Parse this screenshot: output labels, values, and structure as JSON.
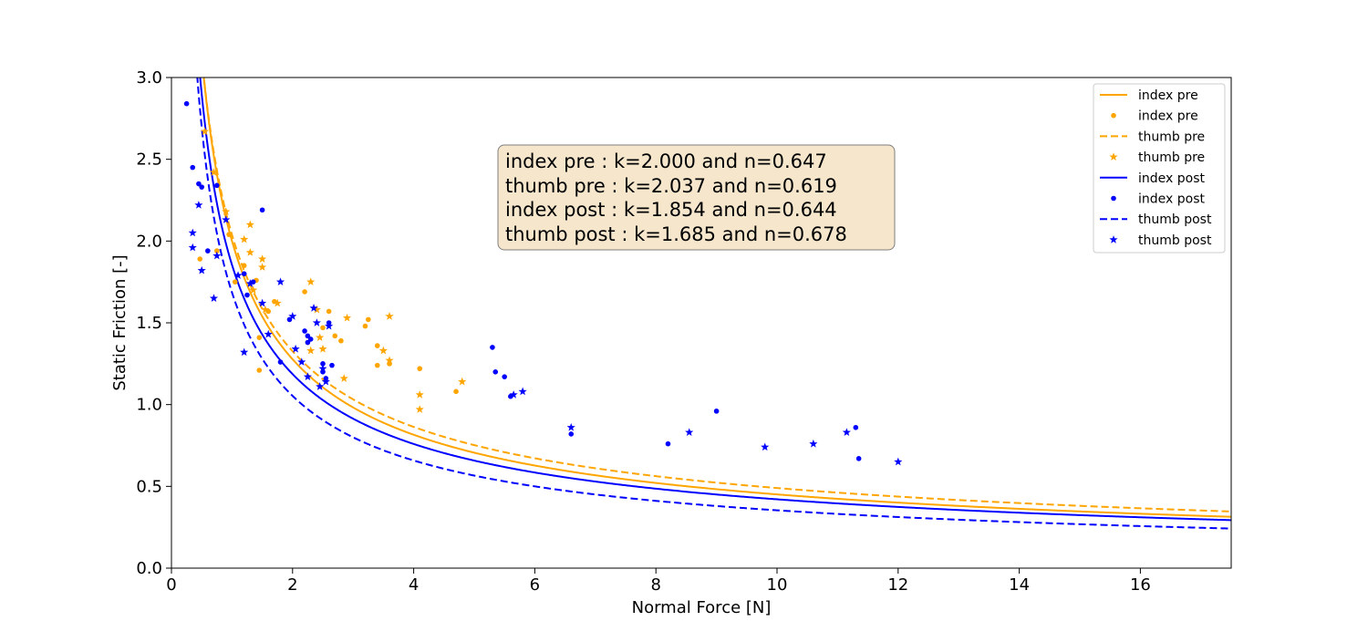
{
  "chart_data": {
    "type": "scatter",
    "xlabel": "Normal Force [N]",
    "ylabel": "Static Friction [-]",
    "xlim": [
      0,
      17.5
    ],
    "ylim": [
      0,
      3.0
    ],
    "xticks": [
      "0",
      "2",
      "4",
      "6",
      "8",
      "10",
      "12",
      "14",
      "16"
    ],
    "yticks": [
      "0.0",
      "0.5",
      "1.0",
      "1.5",
      "2.0",
      "2.5",
      "3.0"
    ],
    "grid": false,
    "legend_position": "top-right",
    "colors": {
      "pre": "#ffa500",
      "post": "#0000ff"
    },
    "annotation": [
      "index pre : k=2.000 and n=0.647",
      "thumb pre : k=2.037 and n=0.619",
      "index post : k=1.854 and n=0.644",
      "thumb post : k=1.685 and n=0.678"
    ],
    "fits": [
      {
        "name": "index pre",
        "k": 2.0,
        "n": 0.647,
        "color": "#ffa500",
        "dash": "solid"
      },
      {
        "name": "thumb pre",
        "k": 2.037,
        "n": 0.619,
        "color": "#ffa500",
        "dash": "dashed"
      },
      {
        "name": "index post",
        "k": 1.854,
        "n": 0.644,
        "color": "#0000ff",
        "dash": "solid"
      },
      {
        "name": "thumb post",
        "k": 1.685,
        "n": 0.678,
        "color": "#0000ff",
        "dash": "dashed"
      }
    ],
    "series": [
      {
        "name": "index pre",
        "marker": "dot",
        "color": "#ffa500",
        "points": [
          [
            0.47,
            1.89
          ],
          [
            0.75,
            1.94
          ],
          [
            0.95,
            2.04
          ],
          [
            1.05,
            1.75
          ],
          [
            1.2,
            1.85
          ],
          [
            1.4,
            1.76
          ],
          [
            1.45,
            1.41
          ],
          [
            1.45,
            1.21
          ],
          [
            1.6,
            1.57
          ],
          [
            1.7,
            1.63
          ],
          [
            2.2,
            1.69
          ],
          [
            2.25,
            1.38
          ],
          [
            2.5,
            1.47
          ],
          [
            2.6,
            1.57
          ],
          [
            2.7,
            1.42
          ],
          [
            2.8,
            1.39
          ],
          [
            3.2,
            1.48
          ],
          [
            3.25,
            1.52
          ],
          [
            3.4,
            1.36
          ],
          [
            3.4,
            1.24
          ],
          [
            3.6,
            1.25
          ],
          [
            4.1,
            1.22
          ],
          [
            4.7,
            1.08
          ]
        ]
      },
      {
        "name": "thumb pre",
        "marker": "star",
        "color": "#ffa500",
        "points": [
          [
            0.55,
            2.67
          ],
          [
            0.7,
            2.42
          ],
          [
            0.9,
            2.18
          ],
          [
            1.2,
            2.01
          ],
          [
            1.3,
            2.1
          ],
          [
            1.3,
            1.93
          ],
          [
            1.5,
            1.89
          ],
          [
            1.5,
            1.84
          ],
          [
            1.35,
            1.7
          ],
          [
            1.55,
            1.58
          ],
          [
            1.75,
            1.62
          ],
          [
            2.3,
            1.75
          ],
          [
            2.4,
            1.58
          ],
          [
            2.45,
            1.41
          ],
          [
            2.5,
            1.34
          ],
          [
            2.3,
            1.33
          ],
          [
            2.9,
            1.53
          ],
          [
            2.85,
            1.16
          ],
          [
            3.5,
            1.33
          ],
          [
            3.6,
            1.27
          ],
          [
            3.6,
            1.54
          ],
          [
            4.1,
            1.06
          ],
          [
            4.1,
            0.97
          ],
          [
            4.8,
            1.14
          ]
        ]
      },
      {
        "name": "index post",
        "marker": "dot",
        "color": "#0000ff",
        "points": [
          [
            0.25,
            2.84
          ],
          [
            0.35,
            2.45
          ],
          [
            0.45,
            2.35
          ],
          [
            0.5,
            2.33
          ],
          [
            0.75,
            2.34
          ],
          [
            0.6,
            1.94
          ],
          [
            1.2,
            1.8
          ],
          [
            1.25,
            1.67
          ],
          [
            1.35,
            1.75
          ],
          [
            1.5,
            2.19
          ],
          [
            1.8,
            1.26
          ],
          [
            1.95,
            1.52
          ],
          [
            2.2,
            1.45
          ],
          [
            2.25,
            1.38
          ],
          [
            2.25,
            1.42
          ],
          [
            2.3,
            1.4
          ],
          [
            2.5,
            1.2
          ],
          [
            2.5,
            1.25
          ],
          [
            2.55,
            1.16
          ],
          [
            2.6,
            1.5
          ],
          [
            2.65,
            1.24
          ],
          [
            5.3,
            1.35
          ],
          [
            5.35,
            1.2
          ],
          [
            5.5,
            1.17
          ],
          [
            5.6,
            1.05
          ],
          [
            6.6,
            0.82
          ],
          [
            8.2,
            0.76
          ],
          [
            9.0,
            0.96
          ],
          [
            11.3,
            0.86
          ],
          [
            11.35,
            0.67
          ]
        ]
      },
      {
        "name": "thumb post",
        "marker": "star",
        "color": "#0000ff",
        "points": [
          [
            0.35,
            2.05
          ],
          [
            0.35,
            1.96
          ],
          [
            0.45,
            2.22
          ],
          [
            0.5,
            1.82
          ],
          [
            0.7,
            1.65
          ],
          [
            0.75,
            1.91
          ],
          [
            0.9,
            2.13
          ],
          [
            1.1,
            1.79
          ],
          [
            1.2,
            1.32
          ],
          [
            1.3,
            1.74
          ],
          [
            1.5,
            1.62
          ],
          [
            1.6,
            1.43
          ],
          [
            1.8,
            1.75
          ],
          [
            2.0,
            1.54
          ],
          [
            2.05,
            1.34
          ],
          [
            2.15,
            1.26
          ],
          [
            2.25,
            1.17
          ],
          [
            2.35,
            1.59
          ],
          [
            2.4,
            1.5
          ],
          [
            2.45,
            1.11
          ],
          [
            2.5,
            1.22
          ],
          [
            2.55,
            1.14
          ],
          [
            2.6,
            1.48
          ],
          [
            5.65,
            1.06
          ],
          [
            5.8,
            1.08
          ],
          [
            6.6,
            0.86
          ],
          [
            8.55,
            0.83
          ],
          [
            9.8,
            0.74
          ],
          [
            10.6,
            0.76
          ],
          [
            11.15,
            0.83
          ],
          [
            12.0,
            0.65
          ]
        ]
      }
    ],
    "legend": [
      {
        "label": "index pre",
        "kind": "line-solid",
        "color": "#ffa500"
      },
      {
        "label": "index pre",
        "kind": "dot",
        "color": "#ffa500"
      },
      {
        "label": "thumb pre",
        "kind": "line-dashed",
        "color": "#ffa500"
      },
      {
        "label": "thumb pre",
        "kind": "star",
        "color": "#ffa500"
      },
      {
        "label": "index post",
        "kind": "line-solid",
        "color": "#0000ff"
      },
      {
        "label": "index post",
        "kind": "dot",
        "color": "#0000ff"
      },
      {
        "label": "thumb post",
        "kind": "line-dashed",
        "color": "#0000ff"
      },
      {
        "label": "thumb post",
        "kind": "star",
        "color": "#0000ff"
      }
    ]
  }
}
